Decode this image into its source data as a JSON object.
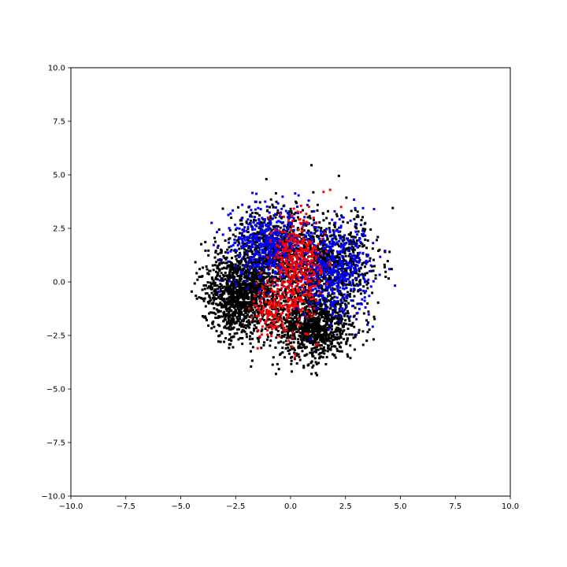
{
  "chart_data": {
    "type": "scatter",
    "title": "",
    "xlabel": "",
    "ylabel": "",
    "xlim": [
      -10,
      10
    ],
    "ylim": [
      -10,
      10
    ],
    "grid": false,
    "x_ticks": [
      -10,
      -7.5,
      -5,
      -2.5,
      0,
      2.5,
      5,
      7.5,
      10
    ],
    "y_ticks": [
      -10,
      -7.5,
      -5,
      -2.5,
      0,
      2.5,
      5,
      7.5,
      10
    ],
    "x_tick_labels": [
      "−10.0",
      "−7.5",
      "−5.0",
      "−2.5",
      "0.0",
      "2.5",
      "5.0",
      "7.5",
      "10.0"
    ],
    "y_tick_labels": [
      "−10.0",
      "−7.5",
      "−5.0",
      "−2.5",
      "0.0",
      "2.5",
      "5.0",
      "7.5",
      "10.0"
    ],
    "series": [
      {
        "color": "#000000",
        "clusters": [
          {
            "center": [
              -2.3,
              -0.6
            ],
            "spread": [
              0.85,
              1.0
            ],
            "count": 1300
          },
          {
            "center": [
              1.0,
              -2.0
            ],
            "spread": [
              0.9,
              0.85
            ],
            "count": 1100
          },
          {
            "center": [
              1.8,
              0.9
            ],
            "spread": [
              1.0,
              1.0
            ],
            "count": 900
          },
          {
            "center": [
              -0.8,
              1.6
            ],
            "spread": [
              0.9,
              0.9
            ],
            "count": 700
          }
        ],
        "outliers": [
          [
            -4.5,
            -0.45
          ],
          [
            0.95,
            5.45
          ],
          [
            2.2,
            4.95
          ],
          [
            4.65,
            3.45
          ],
          [
            -1.1,
            4.8
          ],
          [
            1.2,
            -4.35
          ],
          [
            -1.8,
            -3.95
          ],
          [
            4.3,
            1.4
          ],
          [
            -3.3,
            1.3
          ],
          [
            4.6,
            0.6
          ],
          [
            0.6,
            -4.0
          ],
          [
            -4.0,
            -1.6
          ]
        ]
      },
      {
        "color": "#0000ff",
        "clusters": [
          {
            "center": [
              -1.0,
              1.7
            ],
            "spread": [
              0.9,
              0.9
            ],
            "count": 450
          },
          {
            "center": [
              2.0,
              0.6
            ],
            "spread": [
              0.85,
              1.1
            ],
            "count": 450
          }
        ],
        "outliers": [
          [
            3.8,
            3.4
          ],
          [
            4.5,
            0.6
          ],
          [
            -2.2,
            3.6
          ],
          [
            0.9,
            -2.7
          ],
          [
            3.5,
            -2.0
          ]
        ]
      },
      {
        "color": "#ff0000",
        "clusters": [
          {
            "center": [
              0.3,
              0.6
            ],
            "spread": [
              0.55,
              1.25
            ],
            "count": 400
          },
          {
            "center": [
              -0.8,
              -1.4
            ],
            "spread": [
              0.5,
              0.6
            ],
            "count": 120
          }
        ],
        "outliers": [
          [
            1.5,
            4.2
          ],
          [
            2.3,
            3.5
          ],
          [
            -1.5,
            -3.1
          ],
          [
            -1.0,
            3.0
          ],
          [
            1.8,
            4.3
          ]
        ]
      }
    ]
  }
}
